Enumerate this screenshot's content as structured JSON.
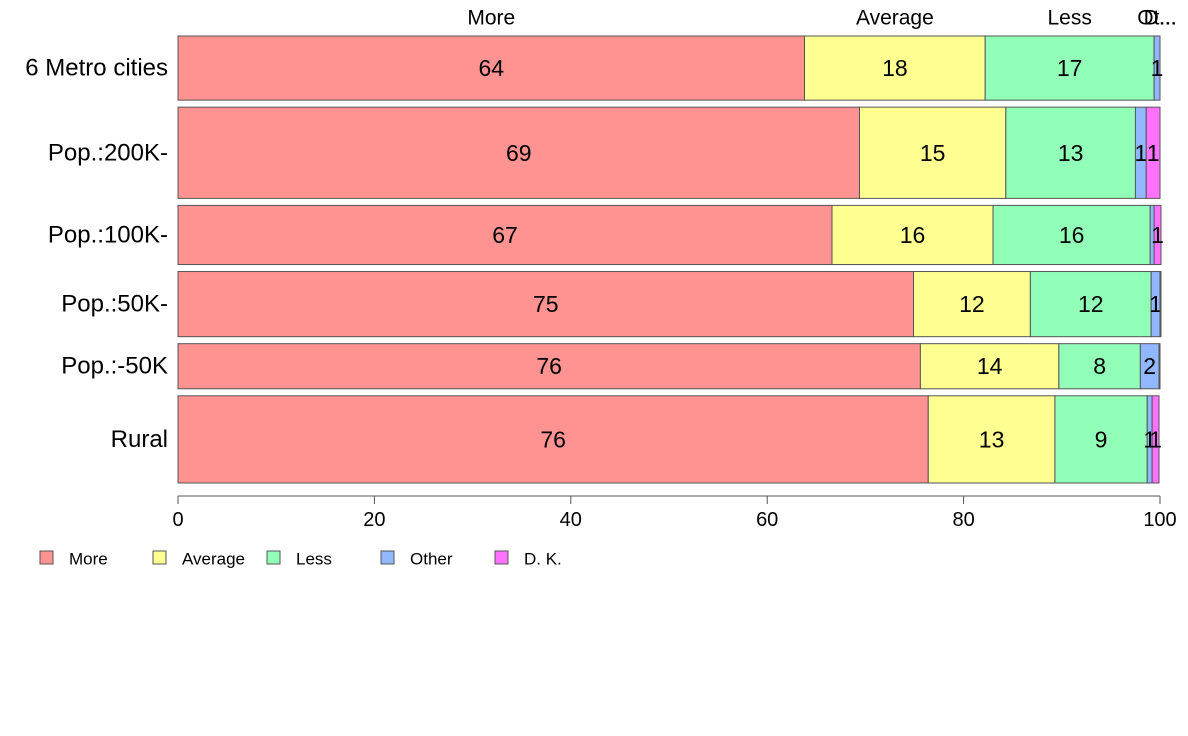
{
  "chart_data": {
    "type": "bar",
    "orientation": "horizontal",
    "stacked": true,
    "categories": [
      "6 Metro cities",
      "Pop.:200K-",
      "Pop.:100K-",
      "Pop.:50K-",
      "Pop.:-50K",
      "Rural"
    ],
    "series": [
      {
        "name": "More",
        "color": "#ff9391",
        "values": [
          63.8,
          69.4,
          66.6,
          74.9,
          75.6,
          76.4
        ],
        "labels": [
          "64",
          "69",
          "67",
          "75",
          "76",
          "76"
        ]
      },
      {
        "name": "Average",
        "color": "#ffff91",
        "values": [
          18.4,
          14.9,
          16.4,
          11.9,
          14.1,
          12.9
        ],
        "labels": [
          "18",
          "15",
          "16",
          "12",
          "14",
          "13"
        ]
      },
      {
        "name": "Less",
        "color": "#91ffb7",
        "values": [
          17.2,
          13.2,
          16.0,
          12.3,
          8.3,
          9.4
        ],
        "labels": [
          "17",
          "13",
          "16",
          "12",
          "8",
          "9"
        ]
      },
      {
        "name": "Other",
        "color": "#91b7ff",
        "values": [
          0.6,
          1.1,
          0.4,
          0.9,
          1.9,
          0.5
        ],
        "labels": [
          "1",
          "1",
          "",
          "1",
          "2",
          "1"
        ]
      },
      {
        "name": "D. K.",
        "color": "#ff72ff",
        "values": [
          0.0,
          1.4,
          0.7,
          0.1,
          0.1,
          0.7
        ],
        "labels": [
          "",
          "1",
          "1",
          "",
          "",
          "1"
        ]
      }
    ],
    "top_labels": [
      "More",
      "Average",
      "Less",
      "Ot...",
      "D..."
    ],
    "bar_widths": [
      64,
      91,
      59,
      65,
      45,
      87
    ],
    "xlim": [
      0,
      100
    ],
    "xticks": [
      0,
      20,
      40,
      60,
      80,
      100
    ],
    "tick_labels": [
      "0",
      "20",
      "40",
      "60",
      "80",
      "100"
    ],
    "legend_position": "bottom-left",
    "grid": false
  }
}
